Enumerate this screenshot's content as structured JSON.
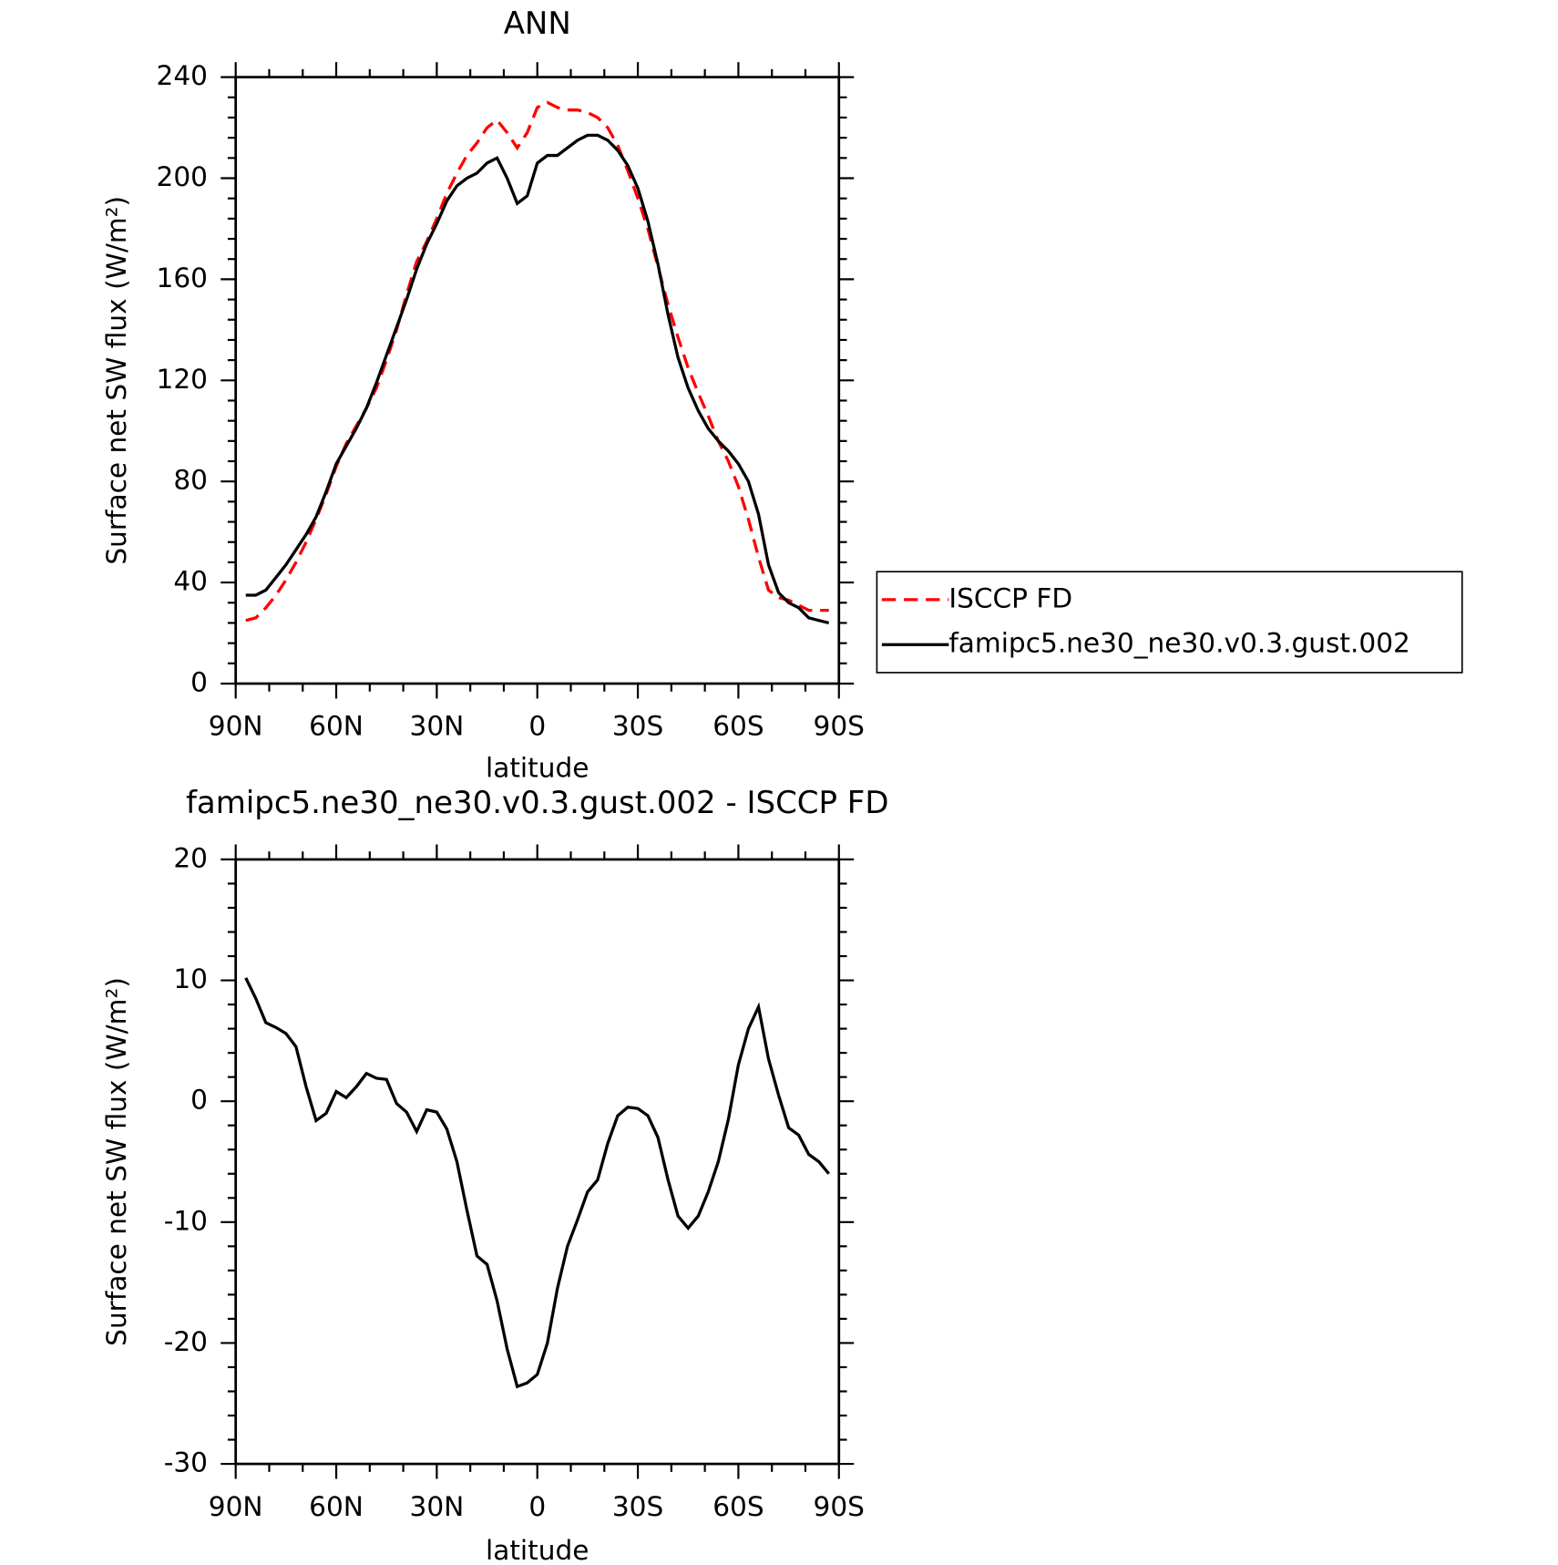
{
  "chart_data": [
    {
      "type": "line",
      "title": "ANN",
      "xlabel": "latitude",
      "ylabel": "Surface net SW flux (W/m²)",
      "x": [
        87,
        84,
        81,
        78,
        75,
        72,
        69,
        66,
        63,
        60,
        57,
        54,
        51,
        48,
        45,
        42,
        39,
        36,
        33,
        30,
        27,
        24,
        21,
        18,
        15,
        12,
        9,
        6,
        3,
        0,
        -3,
        -6,
        -9,
        -12,
        -15,
        -18,
        -21,
        -24,
        -27,
        -30,
        -33,
        -36,
        -39,
        -42,
        -45,
        -48,
        -51,
        -54,
        -57,
        -60,
        -63,
        -66,
        -69,
        -72,
        -75,
        -78,
        -81,
        -84,
        -87
      ],
      "xlim": [
        90,
        -90
      ],
      "xticks": [
        {
          "value": 90,
          "label": "90N"
        },
        {
          "value": 60,
          "label": "60N"
        },
        {
          "value": 30,
          "label": "30N"
        },
        0,
        {
          "value": -30,
          "label": "30S"
        },
        {
          "value": -60,
          "label": "60S"
        },
        {
          "value": -90,
          "label": "90S"
        }
      ],
      "ylim": [
        0,
        240
      ],
      "yticks": [
        0,
        40,
        80,
        120,
        160,
        200,
        240
      ],
      "series": [
        {
          "name": "ISCCP FD",
          "color": "#ff0000",
          "line_style": "dashed",
          "values": [
            25,
            26,
            30,
            35,
            41,
            48,
            56,
            65,
            75,
            86,
            95,
            102,
            109,
            117,
            128,
            140,
            154,
            167,
            175,
            184,
            194,
            202,
            209,
            214,
            220,
            223,
            218,
            212,
            218,
            228,
            230,
            228,
            227,
            227,
            226,
            224,
            220,
            213,
            203,
            192,
            180,
            165,
            150,
            137,
            125,
            115,
            106,
            96,
            88,
            78,
            65,
            50,
            37,
            34,
            33,
            31,
            29,
            29,
            29
          ]
        },
        {
          "name": "famipc5.ne30_ne30.v0.3.gust.002",
          "color": "#000000",
          "line_style": "solid",
          "values": [
            35,
            35,
            37,
            42,
            47,
            53,
            59,
            66,
            76,
            87,
            94,
            101,
            109,
            119,
            130,
            141,
            152,
            164,
            174,
            182,
            191,
            197,
            200,
            202,
            206,
            208,
            200,
            190,
            193,
            206,
            209,
            209,
            212,
            215,
            217,
            217,
            215,
            211,
            205,
            196,
            183,
            166,
            146,
            129,
            117,
            108,
            101,
            96,
            92,
            87,
            80,
            67,
            47,
            36,
            32,
            30,
            26,
            25,
            24
          ]
        }
      ]
    },
    {
      "type": "line",
      "title": "famipc5.ne30_ne30.v0.3.gust.002 - ISCCP FD",
      "xlabel": "latitude",
      "ylabel": "Surface net SW flux (W/m²)",
      "x": [
        87,
        84,
        81,
        78,
        75,
        72,
        69,
        66,
        63,
        60,
        57,
        54,
        51,
        48,
        45,
        42,
        39,
        36,
        33,
        30,
        27,
        24,
        21,
        18,
        15,
        12,
        9,
        6,
        3,
        0,
        -3,
        -6,
        -9,
        -12,
        -15,
        -18,
        -21,
        -24,
        -27,
        -30,
        -33,
        -36,
        -39,
        -42,
        -45,
        -48,
        -51,
        -54,
        -57,
        -60,
        -63,
        -66,
        -69,
        -72,
        -75,
        -78,
        -81,
        -84,
        -87
      ],
      "xlim": [
        90,
        -90
      ],
      "xticks": [
        {
          "value": 90,
          "label": "90N"
        },
        {
          "value": 60,
          "label": "60N"
        },
        {
          "value": 30,
          "label": "30N"
        },
        0,
        {
          "value": -30,
          "label": "30S"
        },
        {
          "value": -60,
          "label": "60S"
        },
        {
          "value": -90,
          "label": "90S"
        }
      ],
      "ylim": [
        -30,
        20
      ],
      "yticks": [
        -30,
        -20,
        -10,
        0,
        10,
        20
      ],
      "color": "#000000",
      "values": [
        10.2,
        8.5,
        6.5,
        6.1,
        5.6,
        4.5,
        1.2,
        -1.6,
        -1.0,
        0.8,
        0.3,
        1.2,
        2.3,
        1.9,
        1.8,
        -0.2,
        -0.9,
        -2.5,
        -0.7,
        -0.9,
        -2.3,
        -5,
        -9,
        -12.8,
        -13.5,
        -16.5,
        -20.5,
        -23.6,
        -23.3,
        -22.6,
        -20,
        -15.5,
        -12,
        -9.8,
        -7.5,
        -6.5,
        -3.5,
        -1.2,
        -0.5,
        -0.6,
        -1.2,
        -3,
        -6.5,
        -9.5,
        -10.5,
        -9.5,
        -7.5,
        -5,
        -1.5,
        3,
        6,
        7.8,
        3.5,
        0.5,
        -2.2,
        -2.8,
        -4.4,
        -5,
        -6
      ]
    }
  ]
}
